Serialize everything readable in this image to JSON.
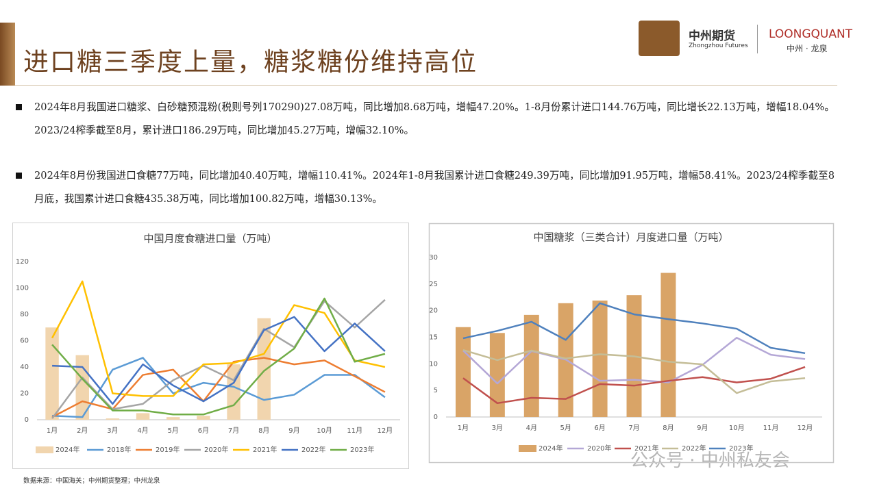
{
  "header": {
    "title": "进口糖三季度上量，糖浆糖份维持高位"
  },
  "logo": {
    "name": "中州期货",
    "sub": "Zhongzhou Futures",
    "brand": "LOONGQUANT",
    "brand_sub": "中州 · 龙泉"
  },
  "bullets": [
    "2024年8月我国进口糖浆、白砂糖预混粉(税则号列170290)27.08万吨，同比增加8.68万吨，增幅47.20%。1-8月份累计进口144.76万吨，同比增长22.13万吨，增幅18.04%。2023/24榨季截至8月，累计进口186.29万吨，同比增加45.27万吨，增幅32.10%。",
    "2024年8月份我国进口食糖77万吨，同比增加40.40万吨，增幅110.41%。2024年1-8月我国累计进口食糖249.39万吨，同比增加91.95万吨，增幅58.41%。2023/24榨季截至8月底，我国累计进口食糖435.38万吨，同比增加100.82万吨，增幅30.13%。"
  ],
  "source": "数据来源：中国海关；中州期货整理；中州龙泉",
  "watermark": "公众号 · 中州私友会",
  "chart_data": [
    {
      "type": "combo",
      "title": "中国月度食糖进口量（万吨）",
      "categories": [
        "1月",
        "2月",
        "3月",
        "4月",
        "5月",
        "6月",
        "7月",
        "8月",
        "9月",
        "10月",
        "11月",
        "12月"
      ],
      "ylim": [
        0,
        120
      ],
      "yticks": [
        0,
        20,
        40,
        60,
        80,
        100,
        120
      ],
      "grid": false,
      "legend": "bottom",
      "series": [
        {
          "name": "2024年",
          "type": "bar",
          "color": "#f1d5ae",
          "values": [
            70,
            49,
            1,
            5,
            2,
            3,
            42,
            77,
            null,
            null,
            null,
            null
          ]
        },
        {
          "name": "2018年",
          "type": "line",
          "color": "#5b9bd5",
          "values": [
            3,
            2,
            38,
            47,
            20,
            28,
            25,
            15,
            19,
            34,
            34,
            17
          ]
        },
        {
          "name": "2019年",
          "type": "line",
          "color": "#ed7d31",
          "values": [
            2,
            14,
            8,
            34,
            38,
            14,
            44,
            47,
            42,
            45,
            33,
            21
          ]
        },
        {
          "name": "2020年",
          "type": "line",
          "color": "#a5a5a5",
          "values": [
            1,
            32,
            8,
            12,
            30,
            41,
            30,
            69,
            55,
            90,
            70,
            91
          ]
        },
        {
          "name": "2021年",
          "type": "line",
          "color": "#ffc000",
          "values": [
            62,
            105,
            20,
            18,
            18,
            42,
            43,
            50,
            87,
            81,
            45,
            40
          ]
        },
        {
          "name": "2022年",
          "type": "line",
          "color": "#4472c4",
          "values": [
            41,
            40,
            12,
            42,
            26,
            14,
            28,
            68,
            78,
            52,
            73,
            52
          ]
        },
        {
          "name": "2023年",
          "type": "line",
          "color": "#70ad47",
          "values": [
            57,
            31,
            7,
            7,
            4,
            4,
            11,
            37,
            54,
            92,
            44,
            50
          ]
        }
      ]
    },
    {
      "type": "combo",
      "title": "中国糖浆（三类合计）月度进口量（万吨）",
      "categories": [
        "1月",
        "3月",
        "4月",
        "5月",
        "6月",
        "7月",
        "8月",
        "9月",
        "10月",
        "11月",
        "12月"
      ],
      "ylim": [
        0,
        30
      ],
      "yticks": [
        0,
        5,
        10,
        15,
        20,
        25,
        30
      ],
      "grid": false,
      "legend": "bottom",
      "series": [
        {
          "name": "2024年",
          "type": "bar",
          "color": "#d9a467",
          "values": [
            16.9,
            15.8,
            19.2,
            21.4,
            21.9,
            22.9,
            27.1,
            null,
            null,
            null,
            null
          ]
        },
        {
          "name": "2020年",
          "type": "line",
          "color": "#b4a7d6",
          "values": [
            12.5,
            6.3,
            12.4,
            10.8,
            6.8,
            7.0,
            6.5,
            9.8,
            14.9,
            11.7,
            10.9
          ]
        },
        {
          "name": "2021年",
          "type": "line",
          "color": "#c0504d",
          "values": [
            7.3,
            2.6,
            3.6,
            3.4,
            6.2,
            5.9,
            6.8,
            7.5,
            6.5,
            7.2,
            9.4
          ]
        },
        {
          "name": "2022年",
          "type": "line",
          "color": "#c4bd97",
          "values": [
            12.6,
            10.7,
            12.5,
            11.0,
            11.8,
            11.4,
            10.4,
            9.9,
            4.5,
            6.7,
            7.3
          ]
        },
        {
          "name": "2023年",
          "type": "line",
          "color": "#4f81bd",
          "values": [
            14.8,
            16.2,
            17.9,
            14.5,
            21.4,
            19.3,
            18.4,
            17.6,
            16.6,
            13.0,
            12.0
          ]
        }
      ]
    }
  ]
}
